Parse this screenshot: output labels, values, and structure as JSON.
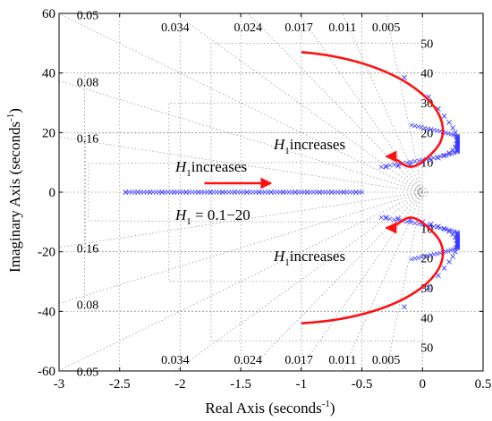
{
  "chart_data": {
    "type": "scatter",
    "xlabel": "Real Axis (seconds",
    "xlabel_sup": "-1",
    "xlabel_tail": ")",
    "ylabel": "Imaginary Axis (seconds",
    "ylabel_sup": "-1",
    "ylabel_tail": ")",
    "xlim": [
      -3,
      0.5
    ],
    "ylim": [
      -60,
      60
    ],
    "xticks": [
      {
        "v": -3,
        "t": "-3"
      },
      {
        "v": -2.5,
        "t": "-2.5"
      },
      {
        "v": -2,
        "t": "-2"
      },
      {
        "v": -1.5,
        "t": "-1.5"
      },
      {
        "v": -1,
        "t": "-1"
      },
      {
        "v": -0.5,
        "t": "-0.5"
      },
      {
        "v": 0,
        "t": "0"
      },
      {
        "v": 0.5,
        "t": "0.5"
      }
    ],
    "yticks": [
      {
        "v": -60,
        "t": "-60"
      },
      {
        "v": -40,
        "t": "-40"
      },
      {
        "v": -20,
        "t": "-20"
      },
      {
        "v": 0,
        "t": "0"
      },
      {
        "v": 20,
        "t": "20"
      },
      {
        "v": 40,
        "t": "40"
      },
      {
        "v": 60,
        "t": "60"
      }
    ],
    "damping_ratio_grid": [
      {
        "zeta": 0.05,
        "label": "0.05"
      },
      {
        "zeta": 0.034,
        "label": "0.034"
      },
      {
        "zeta": 0.024,
        "label": "0.024"
      },
      {
        "zeta": 0.017,
        "label": "0.017"
      },
      {
        "zeta": 0.011,
        "label": "0.011"
      },
      {
        "zeta": 0.005,
        "label": "0.005"
      },
      {
        "zeta": 0.08,
        "label": "0.08"
      },
      {
        "zeta": 0.16,
        "label": "0.16"
      }
    ],
    "natural_freq_grid": [
      {
        "wn": 10,
        "label": "10"
      },
      {
        "wn": 20,
        "label": "20"
      },
      {
        "wn": 30,
        "label": "30"
      },
      {
        "wn": 40,
        "label": "40"
      },
      {
        "wn": 50,
        "label": "50"
      }
    ],
    "marker": "x",
    "marker_color": "#3b3bff",
    "arrow_color": "#ff1010",
    "series": [
      {
        "values": [
          {
            "x": -0.3,
            "y": 8.5
          },
          {
            "x": -0.2,
            "y": 8.8
          },
          {
            "x": -0.1,
            "y": 9.3
          },
          {
            "x": 0.0,
            "y": 10.0
          },
          {
            "x": 0.07,
            "y": 10.7
          },
          {
            "x": 0.13,
            "y": 11.5
          },
          {
            "x": 0.18,
            "y": 12.3
          },
          {
            "x": 0.22,
            "y": 13.2
          },
          {
            "x": 0.25,
            "y": 14.1
          },
          {
            "x": 0.27,
            "y": 15.1
          },
          {
            "x": 0.28,
            "y": 16.2
          },
          {
            "x": 0.29,
            "y": 17.3
          },
          {
            "x": 0.28,
            "y": 18.6
          },
          {
            "x": 0.27,
            "y": 20.0
          },
          {
            "x": 0.25,
            "y": 21.6
          },
          {
            "x": 0.22,
            "y": 23.4
          },
          {
            "x": 0.18,
            "y": 25.5
          },
          {
            "x": 0.13,
            "y": 28.0
          },
          {
            "x": 0.05,
            "y": 32.0
          },
          {
            "x": -0.15,
            "y": 38.5
          }
        ]
      },
      {
        "values": [
          {
            "x": -0.3,
            "y": -8.5
          },
          {
            "x": -0.2,
            "y": -8.8
          },
          {
            "x": -0.1,
            "y": -9.3
          },
          {
            "x": 0.0,
            "y": -10.0
          },
          {
            "x": 0.07,
            "y": -10.7
          },
          {
            "x": 0.13,
            "y": -11.5
          },
          {
            "x": 0.18,
            "y": -12.3
          },
          {
            "x": 0.22,
            "y": -13.2
          },
          {
            "x": 0.25,
            "y": -14.1
          },
          {
            "x": 0.27,
            "y": -15.1
          },
          {
            "x": 0.28,
            "y": -16.2
          },
          {
            "x": 0.29,
            "y": -17.3
          },
          {
            "x": 0.28,
            "y": -18.6
          },
          {
            "x": 0.27,
            "y": -20.0
          },
          {
            "x": 0.25,
            "y": -21.6
          },
          {
            "x": 0.22,
            "y": -23.4
          },
          {
            "x": 0.18,
            "y": -25.5
          },
          {
            "x": 0.13,
            "y": -28.0
          },
          {
            "x": 0.05,
            "y": -32.0
          },
          {
            "x": -0.15,
            "y": -38.5
          }
        ]
      },
      {
        "values": [
          {
            "x": -2.45,
            "y": 0
          },
          {
            "x": -2.35,
            "y": 0
          },
          {
            "x": -2.25,
            "y": 0
          },
          {
            "x": -2.15,
            "y": 0
          },
          {
            "x": -2.05,
            "y": 0
          },
          {
            "x": -1.95,
            "y": 0
          },
          {
            "x": -1.85,
            "y": 0
          },
          {
            "x": -1.75,
            "y": 0
          },
          {
            "x": -1.65,
            "y": 0
          },
          {
            "x": -1.55,
            "y": 0
          },
          {
            "x": -1.45,
            "y": 0
          },
          {
            "x": -1.35,
            "y": 0
          },
          {
            "x": -1.25,
            "y": 0
          },
          {
            "x": -1.15,
            "y": 0
          },
          {
            "x": -1.05,
            "y": 0
          },
          {
            "x": -0.95,
            "y": 0
          },
          {
            "x": -0.85,
            "y": 0
          },
          {
            "x": -0.75,
            "y": 0
          },
          {
            "x": -0.65,
            "y": 0
          },
          {
            "x": -0.55,
            "y": 0
          }
        ]
      }
    ],
    "arrows": [
      {
        "from": {
          "x": -1.0,
          "y": 47
        },
        "to": {
          "x": -0.3,
          "y": 12
        }
      },
      {
        "from": {
          "x": -1.0,
          "y": -44
        },
        "to": {
          "x": -0.3,
          "y": -12
        }
      },
      {
        "from": {
          "x": -1.8,
          "y": 3
        },
        "to": {
          "x": -1.25,
          "y": 3
        }
      }
    ],
    "annotations": {
      "upper": {
        "var": "H",
        "sub": "1",
        "text": "increases"
      },
      "middle": {
        "var": "H",
        "sub": "1",
        "text": "increases"
      },
      "lower": {
        "var": "H",
        "sub": "1",
        "text": "increases"
      },
      "range": {
        "var": "H",
        "sub": "1",
        "text": " = 0.1−20"
      }
    }
  }
}
